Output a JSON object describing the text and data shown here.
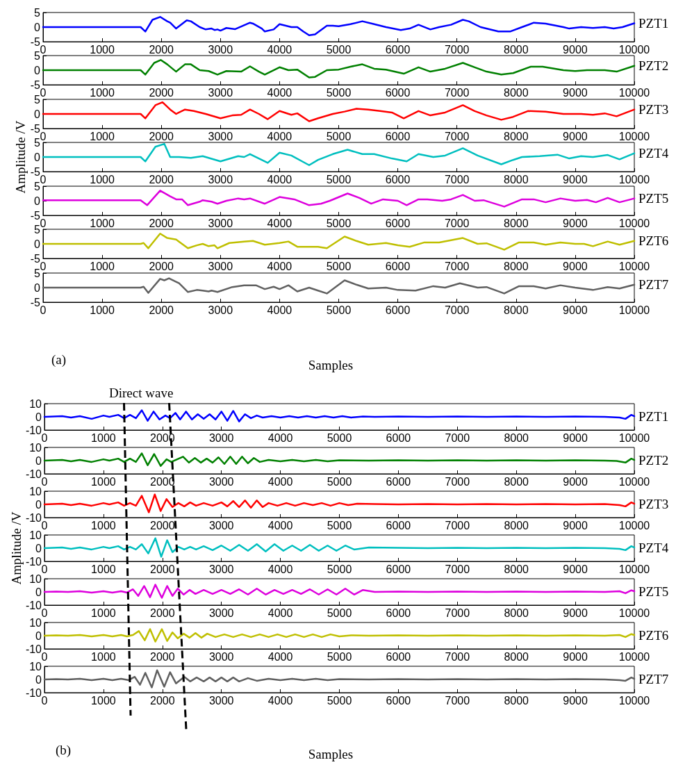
{
  "chart_data": [
    {
      "type": "line",
      "xlim": [
        0,
        10000
      ],
      "xticks": [
        0,
        1000,
        2000,
        3000,
        4000,
        5000,
        6000,
        7000,
        8000,
        9000,
        10000
      ],
      "ylim": [
        -5,
        5
      ],
      "yticks": [
        -5,
        0,
        5
      ],
      "series": [
        {
          "name": "PZT1",
          "color": "#0000ff",
          "x": [
            0,
            1650,
            1730,
            1850,
            1980,
            2100,
            2150,
            2250,
            2430,
            2500,
            2650,
            2750,
            2850,
            2900,
            2950,
            3000,
            3100,
            3250,
            3500,
            3550,
            3700,
            3750,
            3900,
            4000,
            4200,
            4300,
            4400,
            4500,
            4600,
            4800,
            4900,
            5000,
            5200,
            5400,
            5600,
            5800,
            6050,
            6200,
            6350,
            6550,
            6700,
            6900,
            7100,
            7200,
            7400,
            7700,
            7900,
            8100,
            8300,
            8500,
            8800,
            8900,
            9100,
            9300,
            9500,
            9650,
            9800,
            10000
          ],
          "values": [
            0,
            0,
            -1.5,
            2.5,
            3.5,
            2,
            1.5,
            -0.5,
            2.3,
            2,
            0,
            -0.8,
            -0.5,
            -1,
            -0.8,
            -1.2,
            -0.3,
            -0.7,
            1.5,
            1.2,
            -0.5,
            -1.5,
            -0.8,
            1,
            0,
            0,
            -1.5,
            -2.8,
            -2.5,
            0.5,
            0.5,
            0.3,
            1,
            2,
            1,
            0,
            -1,
            -0.5,
            0.8,
            -0.8,
            0,
            0.8,
            2.5,
            2,
            0,
            -1.5,
            -1.5,
            0,
            1.5,
            1.2,
            0,
            -0.5,
            0,
            -0.3,
            0,
            -0.5,
            0,
            1.3
          ]
        }
      ]
    },
    {
      "type": "line",
      "xlim": [
        0,
        10000
      ],
      "xticks": [
        0,
        1000,
        2000,
        3000,
        4000,
        5000,
        6000,
        7000,
        8000,
        9000,
        10000
      ],
      "ylim": [
        -5,
        5
      ],
      "yticks": [
        -5,
        0,
        5
      ],
      "series": [
        {
          "name": "PZT2",
          "color": "#008000",
          "x": [
            0,
            1650,
            1730,
            1880,
            1990,
            2100,
            2250,
            2400,
            2500,
            2650,
            2800,
            2950,
            3100,
            3350,
            3500,
            3650,
            3750,
            4000,
            4150,
            4300,
            4500,
            4600,
            4800,
            5000,
            5200,
            5400,
            5600,
            5800,
            6100,
            6350,
            6550,
            6800,
            7100,
            7300,
            7500,
            7750,
            7950,
            8250,
            8450,
            8800,
            9000,
            9200,
            9500,
            9700,
            10000
          ],
          "values": [
            0,
            0,
            -1.5,
            2.5,
            3.5,
            2,
            -0.5,
            2,
            2,
            0,
            -0.3,
            -1.5,
            -0.3,
            -0.5,
            1.3,
            -0.5,
            -1.5,
            1,
            0,
            0.2,
            -2.5,
            -2.3,
            0,
            0.2,
            1.2,
            2,
            0.5,
            0.2,
            -1.2,
            1,
            -0.5,
            0.5,
            2.5,
            1,
            -0.5,
            -1.5,
            -1,
            1.2,
            1.2,
            0,
            -0.3,
            0,
            0,
            -0.5,
            1.5
          ]
        }
      ]
    },
    {
      "type": "line",
      "xlim": [
        0,
        10000
      ],
      "xticks": [
        0,
        1000,
        2000,
        3000,
        4000,
        5000,
        6000,
        7000,
        8000,
        9000,
        10000
      ],
      "ylim": [
        -5,
        5
      ],
      "yticks": [
        -5,
        0,
        5
      ],
      "series": [
        {
          "name": "PZT3",
          "color": "#ff0000",
          "x": [
            0,
            1650,
            1730,
            1900,
            2020,
            2150,
            2250,
            2400,
            2550,
            2750,
            3000,
            3200,
            3350,
            3500,
            3650,
            3800,
            4000,
            4200,
            4300,
            4500,
            4650,
            4900,
            5100,
            5300,
            5500,
            5700,
            5900,
            6100,
            6350,
            6550,
            6800,
            7100,
            7300,
            7500,
            7750,
            7950,
            8200,
            8500,
            8800,
            9100,
            9300,
            9500,
            9700,
            10000
          ],
          "values": [
            0,
            0,
            -1.5,
            3,
            4,
            1.5,
            0,
            1.5,
            1,
            0,
            -1.5,
            -0.5,
            -0.3,
            1.5,
            0,
            -1.8,
            1,
            -0.3,
            0.2,
            -2.5,
            -1.5,
            0,
            0.8,
            1.8,
            1.5,
            1,
            0.5,
            -1.5,
            1,
            -0.5,
            0.5,
            3,
            1,
            -0.5,
            -2,
            -1,
            1,
            0.8,
            0,
            0,
            -0.3,
            0.2,
            -0.8,
            1.5
          ]
        }
      ]
    },
    {
      "type": "line",
      "xlim": [
        0,
        10000
      ],
      "xticks": [
        0,
        1000,
        2000,
        3000,
        4000,
        5000,
        6000,
        7000,
        8000,
        9000,
        10000
      ],
      "ylim": [
        -5,
        5
      ],
      "yticks": [
        -5,
        0,
        5
      ],
      "ylabel": "Amplitude /V",
      "series": [
        {
          "name": "PZT4",
          "color": "#00bfbf",
          "x": [
            0,
            1650,
            1730,
            1900,
            2050,
            2150,
            2300,
            2500,
            2700,
            3000,
            3300,
            3400,
            3500,
            3650,
            3800,
            4000,
            4200,
            4500,
            4650,
            4900,
            5150,
            5400,
            5600,
            5900,
            6150,
            6350,
            6600,
            6800,
            7100,
            7350,
            7750,
            7950,
            8100,
            8400,
            8700,
            8900,
            9100,
            9300,
            9550,
            9750,
            10000
          ],
          "values": [
            0,
            0,
            -1.5,
            3.5,
            4.5,
            0,
            0,
            -0.3,
            0.3,
            -1.5,
            0.3,
            0,
            1,
            -0.5,
            -2,
            1.5,
            0.5,
            -2.8,
            -1,
            1,
            2.5,
            1,
            1,
            -0.5,
            -1.5,
            1,
            0,
            0.5,
            3,
            0.5,
            -2.5,
            -1,
            0,
            0.3,
            0.8,
            -0.5,
            0.3,
            0,
            0.7,
            -0.8,
            1.3
          ]
        }
      ]
    },
    {
      "type": "line",
      "xlim": [
        0,
        10000
      ],
      "xticks": [
        0,
        1000,
        2000,
        3000,
        4000,
        5000,
        6000,
        7000,
        8000,
        9000,
        10000
      ],
      "ylim": [
        -5,
        5
      ],
      "yticks": [
        -5,
        0,
        5
      ],
      "series": [
        {
          "name": "PZT5",
          "color": "#dd00dd",
          "x": [
            0,
            1650,
            1760,
            1980,
            2150,
            2250,
            2350,
            2450,
            2650,
            2700,
            2850,
            2950,
            3100,
            3300,
            3400,
            3500,
            3750,
            4000,
            4250,
            4500,
            4700,
            4850,
            5150,
            5350,
            5550,
            5750,
            6000,
            6150,
            6350,
            6500,
            6750,
            6900,
            7100,
            7300,
            7450,
            7800,
            8100,
            8300,
            8500,
            8750,
            9000,
            9200,
            9350,
            9550,
            9750,
            10000
          ],
          "values": [
            0.2,
            0.2,
            -1.5,
            3.5,
            1.5,
            0.5,
            0.5,
            -1.5,
            -0.3,
            0.2,
            -0.3,
            -1,
            0,
            0.8,
            0.5,
            0.8,
            -1,
            1.3,
            0.5,
            -1.5,
            -1,
            0,
            2.5,
            1,
            -1,
            0.5,
            0,
            -1.5,
            0.5,
            0.5,
            0,
            0.5,
            2,
            0,
            0.2,
            -2,
            0.5,
            0.5,
            -0.5,
            0.8,
            0,
            0.3,
            -0.5,
            1,
            -0.5,
            0.8
          ]
        }
      ]
    },
    {
      "type": "line",
      "xlim": [
        0,
        10000
      ],
      "xticks": [
        0,
        1000,
        2000,
        3000,
        4000,
        5000,
        6000,
        7000,
        8000,
        9000,
        10000
      ],
      "ylim": [
        -5,
        5
      ],
      "yticks": [
        -5,
        0,
        5
      ],
      "series": [
        {
          "name": "PZT6",
          "color": "#bfbf00",
          "x": [
            0,
            1650,
            1700,
            1780,
            1980,
            2100,
            2250,
            2450,
            2600,
            2700,
            2800,
            2900,
            2950,
            3150,
            3400,
            3550,
            3750,
            4000,
            4150,
            4300,
            4650,
            4800,
            5100,
            5300,
            5500,
            5800,
            6000,
            6200,
            6450,
            6700,
            7100,
            7350,
            7500,
            7800,
            8050,
            8300,
            8500,
            8750,
            9000,
            9150,
            9300,
            9550,
            9750,
            10000
          ],
          "values": [
            0,
            0,
            0.3,
            -1.5,
            3.5,
            2,
            1.5,
            -1.5,
            -0.5,
            0,
            -0.8,
            -0.5,
            -1.5,
            0.3,
            0.8,
            1,
            -0.3,
            0.3,
            0.8,
            -1,
            -1,
            -1.5,
            2.5,
            1,
            -0.3,
            0.3,
            -0.5,
            -1,
            0.5,
            0.5,
            2,
            0,
            0.2,
            -2,
            0.5,
            0.5,
            -0.3,
            0.5,
            0,
            0,
            -0.8,
            0.8,
            -0.3,
            1
          ]
        }
      ]
    },
    {
      "type": "line",
      "xlim": [
        0,
        10000
      ],
      "xticks": [
        0,
        1000,
        2000,
        3000,
        4000,
        5000,
        6000,
        7000,
        8000,
        9000,
        10000
      ],
      "ylim": [
        -5,
        5
      ],
      "yticks": [
        -5,
        0,
        5
      ],
      "xlabel": "Samples",
      "annotations": [
        "(a)"
      ],
      "series": [
        {
          "name": "PZT7",
          "color": "#606060",
          "x": [
            0,
            1650,
            1700,
            1780,
            1980,
            2050,
            2130,
            2300,
            2450,
            2600,
            2700,
            2800,
            2850,
            2950,
            3200,
            3400,
            3600,
            3750,
            3900,
            4000,
            4150,
            4300,
            4500,
            4650,
            4800,
            5100,
            5300,
            5500,
            5800,
            6000,
            6300,
            6600,
            6800,
            7050,
            7350,
            7500,
            7800,
            8050,
            8300,
            8500,
            8750,
            9000,
            9300,
            9550,
            9750,
            10000
          ],
          "values": [
            0,
            0,
            0.3,
            -1.8,
            3,
            2.5,
            3.2,
            1.5,
            -1.5,
            -0.8,
            -1,
            -1.3,
            -1,
            -1.5,
            0.2,
            0.8,
            0.8,
            -0.5,
            0.3,
            -0.5,
            0.8,
            -1.3,
            0,
            -1,
            -2,
            2.5,
            1,
            -0.3,
            0,
            -0.8,
            -1,
            0.5,
            0,
            1.5,
            0,
            0.2,
            -2,
            0.5,
            0.5,
            -0.3,
            0.8,
            0,
            -0.8,
            0.2,
            -0.3,
            1
          ]
        }
      ]
    },
    {
      "type": "line",
      "xlim": [
        0,
        10000
      ],
      "xticks": [
        0,
        1000,
        2000,
        3000,
        4000,
        5000,
        6000,
        7000,
        8000,
        9000,
        10000
      ],
      "ylim": [
        -10,
        10
      ],
      "yticks": [
        -10,
        0,
        10
      ],
      "annotations": [
        "Direct wave"
      ],
      "series": [
        {
          "name": "PZT1",
          "color": "#0000ff",
          "x": [
            0,
            150,
            300,
            450,
            600,
            800,
            1000,
            1100,
            1250,
            1350,
            1450,
            1550,
            1650,
            1750,
            1850,
            1950,
            2050,
            2130,
            2220,
            2300,
            2400,
            2500,
            2600,
            2700,
            2800,
            2900,
            3000,
            3100,
            3200,
            3300,
            3400,
            3500,
            3600,
            3700,
            3850,
            4000,
            4150,
            4300,
            4450,
            4600,
            4750,
            4900,
            5050,
            5200,
            5400,
            5600,
            6000,
            6500,
            7000,
            7500,
            8000,
            8500,
            9000,
            9500,
            9750,
            9850,
            9950,
            10000
          ],
          "values": [
            0,
            0.3,
            0.5,
            -0.5,
            0.5,
            -1.5,
            1,
            0,
            1.5,
            -1,
            1.5,
            -1,
            5,
            -3,
            4,
            -2,
            1,
            -1,
            3,
            -2,
            4,
            -2,
            2,
            -1.5,
            2,
            -2,
            4,
            -3,
            4.5,
            -3.5,
            2,
            -1,
            1,
            -0.5,
            0.5,
            -0.5,
            0.5,
            -0.5,
            0.5,
            -0.5,
            0.5,
            -0.5,
            0.5,
            -0.5,
            0.3,
            0,
            0.3,
            0,
            0.3,
            0,
            0.3,
            0,
            0.3,
            0,
            -0.5,
            -1.5,
            1.5,
            0.5
          ]
        }
      ]
    },
    {
      "type": "line",
      "xlim": [
        0,
        10000
      ],
      "xticks": [
        0,
        1000,
        2000,
        3000,
        4000,
        5000,
        6000,
        7000,
        8000,
        9000,
        10000
      ],
      "ylim": [
        -10,
        10
      ],
      "yticks": [
        -10,
        0,
        10
      ],
      "series": [
        {
          "name": "PZT2",
          "color": "#008000",
          "x": [
            0,
            150,
            300,
            450,
            600,
            800,
            1000,
            1100,
            1250,
            1350,
            1450,
            1550,
            1650,
            1750,
            1860,
            1970,
            2070,
            2150,
            2250,
            2350,
            2450,
            2550,
            2650,
            2750,
            2850,
            2950,
            3050,
            3150,
            3250,
            3350,
            3450,
            3550,
            3650,
            3800,
            4000,
            4200,
            4400,
            4600,
            4800,
            5000,
            5500,
            6000,
            6500,
            7000,
            7500,
            8000,
            8500,
            9000,
            9500,
            9700,
            9850,
            9950,
            10000
          ],
          "values": [
            0,
            0.3,
            0.5,
            -0.5,
            0.5,
            -1,
            1,
            0,
            1.5,
            -1,
            1.5,
            -1,
            5.5,
            -3.5,
            5,
            -4,
            1,
            -1,
            1,
            3,
            -1.5,
            2,
            -1.5,
            1.5,
            -1.5,
            2.5,
            -2.5,
            3,
            -2.5,
            3,
            -2,
            2,
            -1,
            0.5,
            -0.5,
            0.5,
            -0.5,
            0.5,
            -0.5,
            0.3,
            0,
            0.3,
            0,
            0.3,
            0,
            0.3,
            0,
            0.3,
            0,
            -0.3,
            -1.5,
            1.5,
            0.5
          ]
        }
      ]
    },
    {
      "type": "line",
      "xlim": [
        0,
        10000
      ],
      "xticks": [
        0,
        1000,
        2000,
        3000,
        4000,
        5000,
        6000,
        7000,
        8000,
        9000,
        10000
      ],
      "ylim": [
        -10,
        10
      ],
      "yticks": [
        -10,
        0,
        10
      ],
      "series": [
        {
          "name": "PZT3",
          "color": "#ff0000",
          "x": [
            0,
            150,
            300,
            450,
            600,
            800,
            1000,
            1100,
            1250,
            1350,
            1450,
            1550,
            1650,
            1770,
            1870,
            1970,
            2070,
            2170,
            2270,
            2370,
            2470,
            2570,
            2700,
            2850,
            3000,
            3100,
            3200,
            3300,
            3400,
            3500,
            3600,
            3700,
            3800,
            3950,
            4100,
            4250,
            4400,
            4550,
            4700,
            4850,
            5000,
            5150,
            5300,
            5600,
            6000,
            6500,
            7000,
            7500,
            8000,
            8500,
            9000,
            9500,
            9750,
            9850,
            9950,
            10000
          ],
          "values": [
            0,
            0.3,
            0.5,
            -0.5,
            0.5,
            -1,
            1,
            0,
            1.5,
            -1,
            1,
            -1,
            6.5,
            -6,
            7.5,
            -5,
            4,
            -2,
            1,
            -1.5,
            1.5,
            -1,
            1,
            -1,
            1.5,
            -1.5,
            2.5,
            -2,
            3,
            -2.5,
            3,
            -2,
            1,
            -1,
            1,
            -1,
            1,
            -0.5,
            1,
            -1,
            1,
            -0.5,
            0.5,
            0.3,
            0,
            0.3,
            0,
            0.3,
            0,
            0.3,
            0,
            0.3,
            -0.5,
            -1.5,
            1.5,
            0.5
          ]
        }
      ]
    },
    {
      "type": "line",
      "xlim": [
        0,
        10000
      ],
      "xticks": [
        0,
        1000,
        2000,
        3000,
        4000,
        5000,
        6000,
        7000,
        8000,
        9000,
        10000
      ],
      "ylim": [
        -10,
        10
      ],
      "yticks": [
        -10,
        0,
        10
      ],
      "ylabel": "Amplitude /V",
      "series": [
        {
          "name": "PZT4",
          "color": "#00bfbf",
          "x": [
            0,
            150,
            300,
            450,
            600,
            800,
            1000,
            1100,
            1250,
            1350,
            1450,
            1550,
            1650,
            1760,
            1880,
            1980,
            2080,
            2170,
            2270,
            2370,
            2470,
            2570,
            2700,
            2850,
            3000,
            3150,
            3300,
            3450,
            3600,
            3750,
            3900,
            4050,
            4200,
            4350,
            4500,
            4650,
            4800,
            4950,
            5100,
            5250,
            5500,
            6000,
            6500,
            7000,
            7500,
            8000,
            8500,
            9000,
            9500,
            9750,
            9850,
            9950,
            10000
          ],
          "values": [
            0,
            0.3,
            0.5,
            -0.5,
            0.5,
            -1,
            1,
            0,
            1.5,
            -1,
            1,
            -1,
            3,
            -4,
            7.5,
            -6.5,
            6,
            -3,
            1,
            -1,
            1,
            -1,
            1.5,
            -1.5,
            2,
            -2,
            2.5,
            -2,
            3,
            -2.5,
            3,
            -2,
            2,
            -2,
            2.5,
            -2,
            2,
            -2,
            2,
            -1,
            0.5,
            0.3,
            0,
            0.3,
            0,
            0.3,
            0,
            0.3,
            0,
            -0.5,
            -1.5,
            1.5,
            0.5
          ]
        }
      ]
    },
    {
      "type": "line",
      "xlim": [
        0,
        10000
      ],
      "xticks": [
        0,
        1000,
        2000,
        3000,
        4000,
        5000,
        6000,
        7000,
        8000,
        9000,
        10000
      ],
      "ylim": [
        -10,
        10
      ],
      "yticks": [
        -10,
        0,
        10
      ],
      "series": [
        {
          "name": "PZT5",
          "color": "#dd00dd",
          "x": [
            0,
            200,
            400,
            600,
            800,
            1000,
            1150,
            1300,
            1400,
            1500,
            1590,
            1690,
            1790,
            1880,
            1990,
            2080,
            2170,
            2260,
            2360,
            2460,
            2560,
            2700,
            2850,
            3000,
            3150,
            3300,
            3450,
            3600,
            3750,
            3900,
            4050,
            4200,
            4350,
            4500,
            4650,
            4800,
            4950,
            5100,
            5250,
            5400,
            5600,
            6000,
            6500,
            7000,
            7500,
            8000,
            8500,
            9000,
            9500,
            9750,
            9850,
            9950,
            10000
          ],
          "values": [
            0,
            0.3,
            0,
            0.5,
            -0.5,
            0.5,
            -0.5,
            0.5,
            -0.5,
            2,
            -3,
            4.5,
            -4,
            5.5,
            -4.5,
            4.5,
            -3,
            2.5,
            -2,
            1.5,
            -1.5,
            1.5,
            -1.5,
            1.5,
            -1.5,
            2,
            -2,
            2.5,
            -2,
            1.5,
            -1.5,
            1.5,
            -1.5,
            2,
            -2,
            2,
            -2,
            2.5,
            -2,
            1.5,
            0,
            0.3,
            0,
            0.3,
            0,
            0.3,
            0,
            0.3,
            0,
            0.5,
            -1,
            1.2,
            0.5
          ]
        }
      ]
    },
    {
      "type": "line",
      "xlim": [
        0,
        10000
      ],
      "xticks": [
        0,
        1000,
        2000,
        3000,
        4000,
        5000,
        6000,
        7000,
        8000,
        9000,
        10000
      ],
      "ylim": [
        -10,
        10
      ],
      "yticks": [
        -10,
        0,
        10
      ],
      "series": [
        {
          "name": "PZT6",
          "color": "#bfbf00",
          "x": [
            0,
            200,
            400,
            600,
            800,
            1000,
            1150,
            1300,
            1400,
            1500,
            1600,
            1700,
            1790,
            1880,
            1990,
            2080,
            2170,
            2260,
            2360,
            2460,
            2560,
            2660,
            2760,
            2900,
            3050,
            3200,
            3350,
            3500,
            3650,
            3800,
            3950,
            4100,
            4250,
            4400,
            4550,
            4700,
            4850,
            5000,
            5200,
            5500,
            6000,
            6500,
            7000,
            7500,
            8000,
            8500,
            9000,
            9500,
            9750,
            9850,
            9950,
            10000
          ],
          "values": [
            0,
            0.3,
            0,
            0.5,
            -0.5,
            0.5,
            -0.5,
            0.5,
            -0.5,
            0.5,
            3.5,
            -3.5,
            5,
            -4.5,
            5,
            -4,
            2.5,
            -2,
            1.5,
            -1.5,
            2,
            -1.5,
            1.5,
            -1,
            1,
            -1,
            1,
            -1,
            1,
            -1,
            1,
            -1,
            1,
            -1,
            1,
            -1,
            1,
            -0.5,
            0.3,
            0,
            0.3,
            0,
            0.3,
            0,
            0.3,
            0,
            0.3,
            0,
            0.5,
            -1,
            1.2,
            0.5
          ]
        }
      ]
    },
    {
      "type": "line",
      "xlim": [
        0,
        10000
      ],
      "xticks": [
        0,
        1000,
        2000,
        3000,
        4000,
        5000,
        6000,
        7000,
        8000,
        9000,
        10000
      ],
      "ylim": [
        -10,
        10
      ],
      "yticks": [
        -10,
        0,
        10
      ],
      "xlabel": "Samples",
      "annotations": [
        "(b)"
      ],
      "series": [
        {
          "name": "PZT7",
          "color": "#606060",
          "x": [
            0,
            200,
            400,
            600,
            800,
            1000,
            1150,
            1300,
            1430,
            1530,
            1620,
            1710,
            1820,
            1910,
            2030,
            2130,
            2230,
            2370,
            2470,
            2580,
            2700,
            2800,
            2900,
            3000,
            3100,
            3200,
            3300,
            3450,
            3600,
            3800,
            4000,
            4200,
            4400,
            4600,
            4800,
            5000,
            5500,
            6000,
            6500,
            7000,
            7500,
            8000,
            8500,
            9000,
            9500,
            9750,
            9850,
            9950,
            10000
          ],
          "values": [
            0,
            0.3,
            0,
            0.5,
            -0.5,
            0.5,
            -0.5,
            0.5,
            -0.5,
            2,
            -4,
            5,
            -6,
            7,
            -5.5,
            5.5,
            -3,
            2,
            -1.5,
            1.5,
            -1.5,
            1.5,
            -1.5,
            1.5,
            -1.5,
            1.5,
            -1.5,
            1,
            -1,
            0.5,
            -0.5,
            0.5,
            -0.5,
            0.5,
            -0.5,
            0.3,
            0,
            0.3,
            0,
            0.3,
            0,
            0.3,
            0,
            0.3,
            0,
            -0.5,
            -1,
            1.5,
            0.5
          ]
        }
      ]
    }
  ]
}
